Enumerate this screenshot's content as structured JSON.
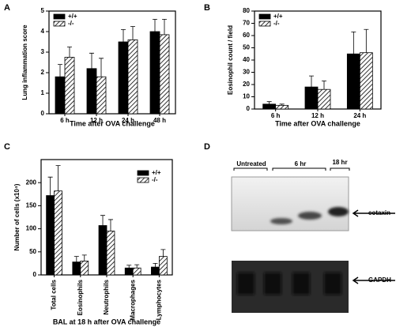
{
  "chart_data": [
    {
      "type": "bar",
      "panel": "A",
      "ylabel": "Lung inflammation score",
      "xlabel": "Time after OVA challenge",
      "categories": [
        "6 h",
        "12 h",
        "24 h",
        "48 h"
      ],
      "series": [
        {
          "name": "+/+",
          "color": "#000000",
          "hatch": false,
          "values": [
            1.8,
            2.2,
            3.5,
            4.0
          ],
          "errors": [
            0.6,
            0.75,
            0.6,
            0.6
          ]
        },
        {
          "name": "-/-",
          "color": "#000000",
          "hatch": true,
          "values": [
            2.75,
            1.8,
            3.6,
            3.85
          ],
          "errors": [
            0.5,
            0.9,
            0.65,
            0.75
          ]
        }
      ],
      "ylim": [
        0,
        5
      ],
      "yticks": [
        0,
        1,
        2,
        3,
        4,
        5
      ],
      "legend": "upper left"
    },
    {
      "type": "bar",
      "panel": "B",
      "ylabel": "Eosinophil count / field",
      "xlabel": "Time after OVA challenge",
      "categories": [
        "6 h",
        "12 h",
        "24 h"
      ],
      "series": [
        {
          "name": "+/+",
          "color": "#000000",
          "hatch": false,
          "values": [
            4,
            18,
            45
          ],
          "errors": [
            2,
            9,
            18
          ]
        },
        {
          "name": "-/-",
          "color": "#000000",
          "hatch": true,
          "values": [
            3,
            16,
            46
          ],
          "errors": [
            1,
            7,
            19
          ]
        }
      ],
      "ylim": [
        0,
        80
      ],
      "yticks": [
        0,
        10,
        20,
        30,
        40,
        50,
        60,
        70,
        80
      ],
      "legend": "upper left"
    },
    {
      "type": "bar",
      "panel": "C",
      "ylabel": "Number of cells (x10⁴)",
      "xlabel": "BAL at 18 h after OVA challenge",
      "categories": [
        "Total cells",
        "Eosinophils",
        "Neutrophils",
        "Macrophages",
        "Lymphocytes"
      ],
      "series": [
        {
          "name": "+/+",
          "color": "#000000",
          "hatch": false,
          "values": [
            172,
            28,
            107,
            15,
            17
          ],
          "errors": [
            40,
            12,
            22,
            6,
            8
          ]
        },
        {
          "name": "-/-",
          "color": "#000000",
          "hatch": true,
          "values": [
            182,
            30,
            95,
            15,
            40
          ],
          "errors": [
            55,
            13,
            25,
            7,
            15
          ]
        }
      ],
      "ylim": [
        0,
        250
      ],
      "yticks": [
        0,
        50,
        100,
        150,
        200
      ],
      "legend": "upper right"
    }
  ],
  "blot": {
    "panel": "D",
    "groups": [
      "Untreated",
      "6 hr",
      "18 hr"
    ],
    "bands": [
      "eotaxin",
      "GAPDH"
    ]
  }
}
